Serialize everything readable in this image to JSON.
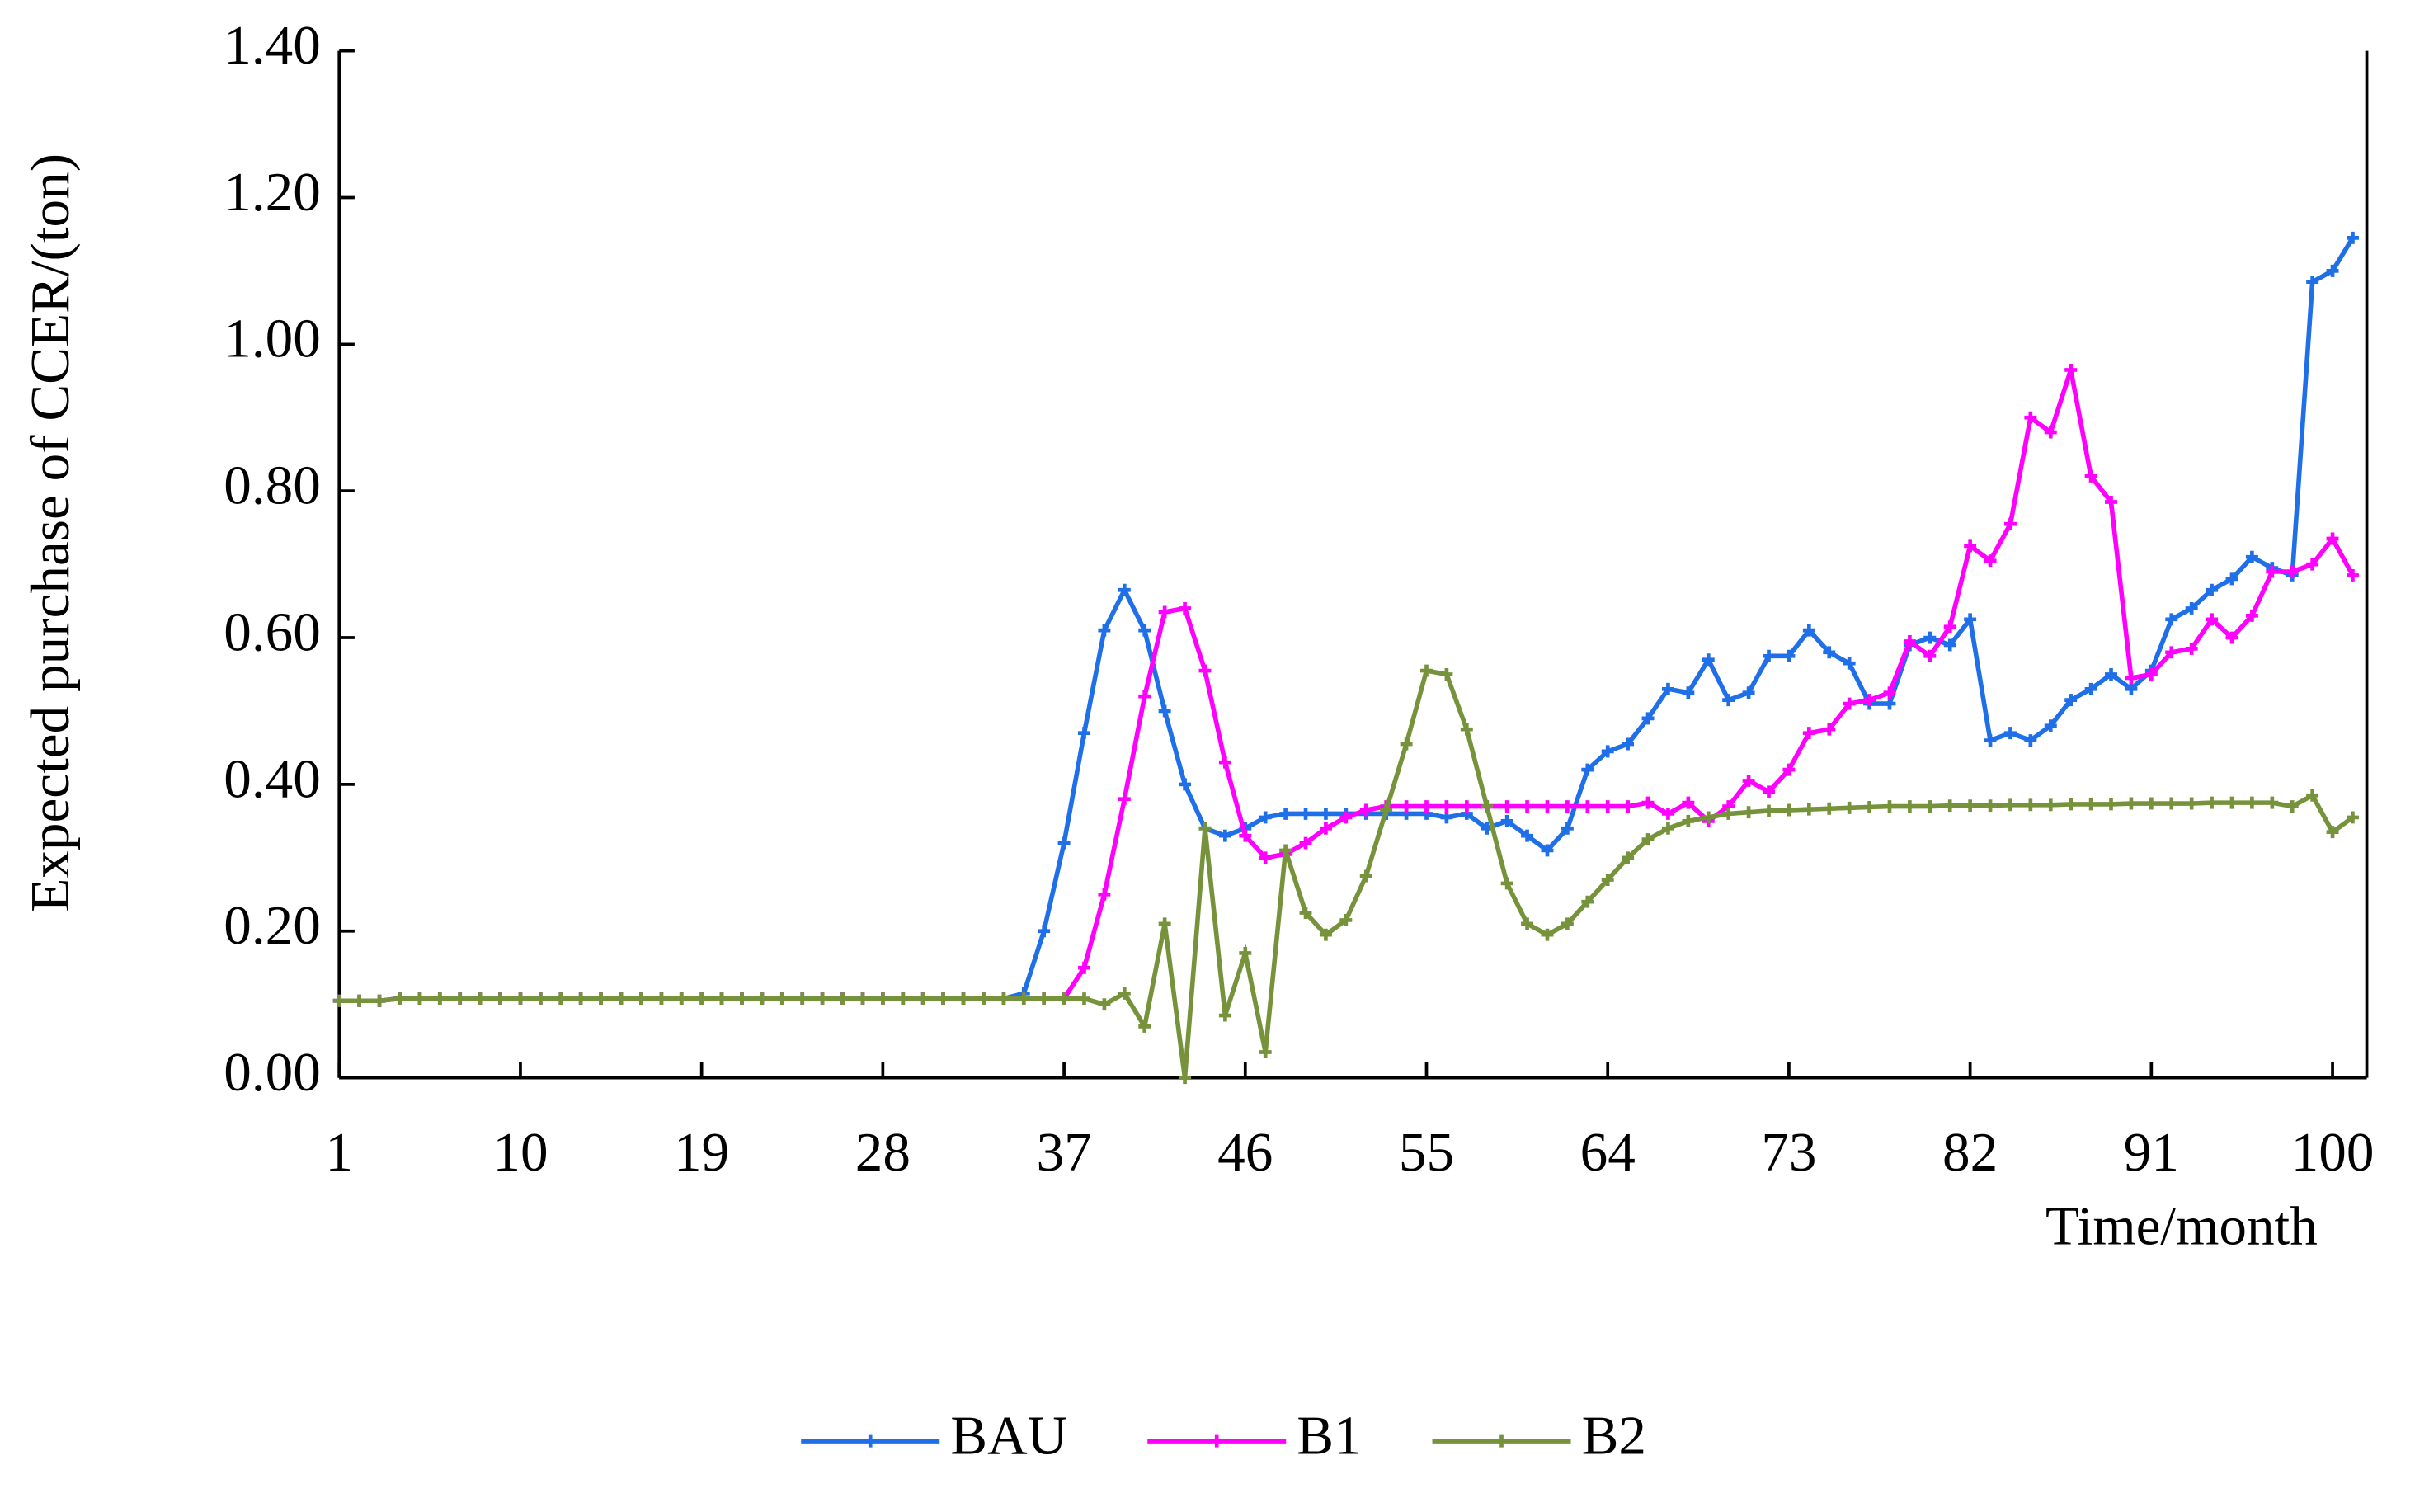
{
  "chart_data": {
    "type": "line",
    "y_label": "Expected purchase of CCER/(ton)",
    "x_label": "Time/month",
    "x": [
      1,
      2,
      3,
      4,
      5,
      6,
      7,
      8,
      9,
      10,
      11,
      12,
      13,
      14,
      15,
      16,
      17,
      18,
      19,
      20,
      21,
      22,
      23,
      24,
      25,
      26,
      27,
      28,
      29,
      30,
      31,
      32,
      33,
      34,
      35,
      36,
      37,
      38,
      39,
      40,
      41,
      42,
      43,
      44,
      45,
      46,
      47,
      48,
      49,
      50,
      51,
      52,
      53,
      54,
      55,
      56,
      57,
      58,
      59,
      60,
      61,
      62,
      63,
      64,
      65,
      66,
      67,
      68,
      69,
      70,
      71,
      72,
      73,
      74,
      75,
      76,
      77,
      78,
      79,
      80,
      81,
      82,
      83,
      84,
      85,
      86,
      87,
      88,
      89,
      90,
      91,
      92,
      93,
      94,
      95,
      96,
      97,
      98,
      99,
      100,
      101
    ],
    "xlim": [
      1,
      101.7
    ],
    "xticks": [
      1,
      10,
      19,
      28,
      37,
      46,
      55,
      64,
      73,
      82,
      91,
      100
    ],
    "ylim": [
      0,
      1.4
    ],
    "yticks": [
      {
        "value": 0,
        "label": "0.00"
      },
      {
        "value": 0.2,
        "label": "0.20"
      },
      {
        "value": 0.4,
        "label": "0.40"
      },
      {
        "value": 0.6,
        "label": "0.60"
      },
      {
        "value": 0.8,
        "label": "0.80"
      },
      {
        "value": 1,
        "label": "1.00"
      },
      {
        "value": 1.2,
        "label": "1.20"
      },
      {
        "value": 1.4,
        "label": "1.40"
      }
    ],
    "legend": "bottom",
    "series": [
      {
        "name": "BAU",
        "color": "#1f6fe8",
        "values": [
          0.105,
          0.105,
          0.105,
          0.108,
          0.108,
          0.108,
          0.108,
          0.108,
          0.108,
          0.108,
          0.108,
          0.108,
          0.108,
          0.108,
          0.108,
          0.108,
          0.108,
          0.108,
          0.108,
          0.108,
          0.108,
          0.108,
          0.108,
          0.108,
          0.108,
          0.108,
          0.108,
          0.108,
          0.108,
          0.108,
          0.108,
          0.108,
          0.108,
          0.108,
          0.115,
          0.2,
          0.32,
          0.47,
          0.61,
          0.665,
          0.61,
          0.5,
          0.4,
          0.34,
          0.33,
          0.34,
          0.355,
          0.36,
          0.36,
          0.36,
          0.36,
          0.36,
          0.36,
          0.36,
          0.36,
          0.355,
          0.36,
          0.34,
          0.35,
          0.33,
          0.31,
          0.34,
          0.42,
          0.445,
          0.455,
          0.49,
          0.53,
          0.525,
          0.57,
          0.515,
          0.525,
          0.575,
          0.575,
          0.61,
          0.58,
          0.565,
          0.51,
          0.51,
          0.59,
          0.6,
          0.59,
          0.625,
          0.46,
          0.47,
          0.46,
          0.48,
          0.515,
          0.53,
          0.55,
          0.53,
          0.555,
          0.625,
          0.64,
          0.665,
          0.68,
          0.71,
          0.695,
          0.685,
          1.085,
          1.1,
          1.145
        ]
      },
      {
        "name": "B1",
        "color": "#ff00ff",
        "values": [
          0.105,
          0.105,
          0.105,
          0.108,
          0.108,
          0.108,
          0.108,
          0.108,
          0.108,
          0.108,
          0.108,
          0.108,
          0.108,
          0.108,
          0.108,
          0.108,
          0.108,
          0.108,
          0.108,
          0.108,
          0.108,
          0.108,
          0.108,
          0.108,
          0.108,
          0.108,
          0.108,
          0.108,
          0.108,
          0.108,
          0.108,
          0.108,
          0.108,
          0.108,
          0.108,
          0.108,
          0.108,
          0.15,
          0.25,
          0.38,
          0.52,
          0.635,
          0.64,
          0.555,
          0.43,
          0.33,
          0.3,
          0.305,
          0.32,
          0.34,
          0.355,
          0.365,
          0.37,
          0.37,
          0.37,
          0.37,
          0.37,
          0.37,
          0.37,
          0.37,
          0.37,
          0.37,
          0.37,
          0.37,
          0.37,
          0.375,
          0.36,
          0.375,
          0.35,
          0.37,
          0.405,
          0.39,
          0.42,
          0.47,
          0.475,
          0.51,
          0.515,
          0.525,
          0.595,
          0.575,
          0.615,
          0.725,
          0.705,
          0.755,
          0.9,
          0.88,
          0.965,
          0.82,
          0.785,
          0.545,
          0.55,
          0.58,
          0.585,
          0.625,
          0.6,
          0.63,
          0.69,
          0.69,
          0.7,
          0.735,
          0.685
        ]
      },
      {
        "name": "B2",
        "color": "#76933c",
        "values": [
          0.105,
          0.105,
          0.105,
          0.108,
          0.108,
          0.108,
          0.108,
          0.108,
          0.108,
          0.108,
          0.108,
          0.108,
          0.108,
          0.108,
          0.108,
          0.108,
          0.108,
          0.108,
          0.108,
          0.108,
          0.108,
          0.108,
          0.108,
          0.108,
          0.108,
          0.108,
          0.108,
          0.108,
          0.108,
          0.108,
          0.108,
          0.108,
          0.108,
          0.108,
          0.108,
          0.108,
          0.108,
          0.108,
          0.1,
          0.115,
          0.07,
          0.21,
          0.0,
          0.34,
          0.085,
          0.17,
          0.035,
          0.31,
          0.225,
          0.195,
          0.215,
          0.275,
          0.365,
          0.455,
          0.555,
          0.55,
          0.475,
          0.37,
          0.265,
          0.21,
          0.195,
          0.21,
          0.24,
          0.27,
          0.3,
          0.325,
          0.34,
          0.35,
          0.355,
          0.36,
          0.362,
          0.364,
          0.365,
          0.366,
          0.367,
          0.368,
          0.369,
          0.37,
          0.37,
          0.37,
          0.371,
          0.371,
          0.371,
          0.372,
          0.372,
          0.372,
          0.373,
          0.373,
          0.373,
          0.374,
          0.374,
          0.374,
          0.374,
          0.375,
          0.375,
          0.375,
          0.375,
          0.37,
          0.385,
          0.335,
          0.355
        ]
      }
    ]
  }
}
